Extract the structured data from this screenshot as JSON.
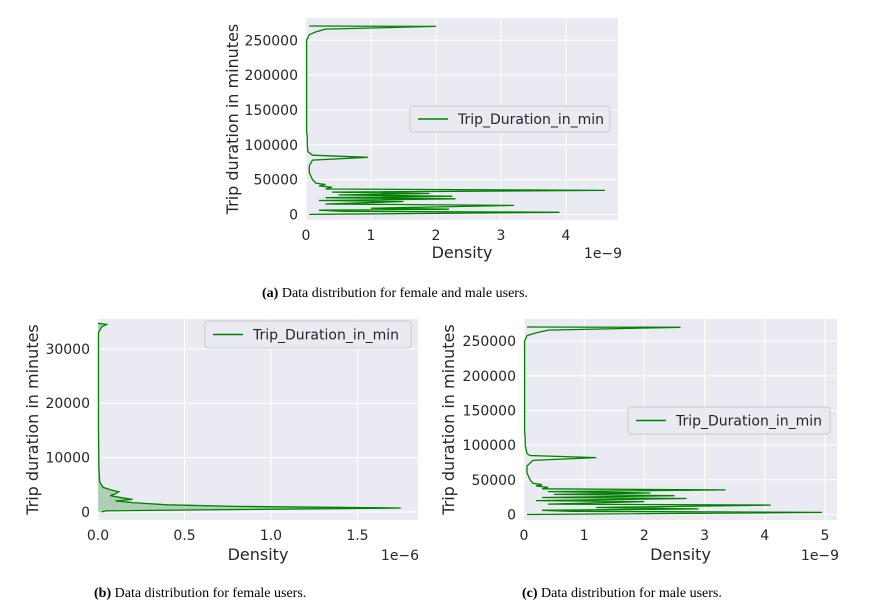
{
  "chart_data": [
    {
      "id": "a",
      "type": "line",
      "orientation": "horizontal-density",
      "caption_label": "(a)",
      "caption_text": "Data distribution for female and male users.",
      "xlabel": "Density",
      "ylabel": "Trip duration in minutes",
      "x_offset_text": "1e−9",
      "xlim": [
        0,
        4.8
      ],
      "ylim": [
        -8000,
        282000
      ],
      "xticks": [
        0,
        1,
        2,
        3,
        4
      ],
      "xtick_labels": [
        "0",
        "1",
        "2",
        "3",
        "4"
      ],
      "yticks": [
        0,
        50000,
        100000,
        150000,
        200000,
        250000
      ],
      "ytick_labels": [
        "0",
        "50000",
        "100000",
        "150000",
        "200000",
        "250000"
      ],
      "legend": [
        "Trip_Duration_in_min"
      ],
      "legend_position": "center-right",
      "color": "#008000",
      "fill": false,
      "series": [
        {
          "name": "Trip_Duration_in_min",
          "points": [
            [
              0.05,
              0
            ],
            [
              3.9,
              3000
            ],
            [
              0.6,
              4500
            ],
            [
              0.2,
              6000
            ],
            [
              2.2,
              7500
            ],
            [
              1.0,
              9000
            ],
            [
              3.2,
              13000
            ],
            [
              0.3,
              15000
            ],
            [
              1.5,
              18500
            ],
            [
              0.2,
              20000
            ],
            [
              2.3,
              22500
            ],
            [
              0.3,
              24000
            ],
            [
              2.25,
              26000
            ],
            [
              0.5,
              28000
            ],
            [
              1.9,
              30000
            ],
            [
              0.4,
              32000
            ],
            [
              4.6,
              34500
            ],
            [
              0.3,
              36500
            ],
            [
              0.4,
              39000
            ],
            [
              0.2,
              41000
            ],
            [
              0.3,
              43000
            ],
            [
              0.15,
              45000
            ],
            [
              0.1,
              50000
            ],
            [
              0.05,
              60000
            ],
            [
              0.05,
              70000
            ],
            [
              0.1,
              78000
            ],
            [
              0.95,
              82000
            ],
            [
              0.1,
              85000
            ],
            [
              0.03,
              90000
            ],
            [
              0.02,
              100000
            ],
            [
              0.02,
              110000
            ],
            [
              0.01,
              120000
            ],
            [
              0.01,
              150000
            ],
            [
              0.01,
              200000
            ],
            [
              0.01,
              250000
            ],
            [
              0.05,
              258000
            ],
            [
              0.15,
              262000
            ],
            [
              0.3,
              266000
            ],
            [
              2.0,
              270000
            ],
            [
              0.05,
              270500
            ]
          ]
        }
      ]
    },
    {
      "id": "b",
      "type": "line",
      "orientation": "horizontal-density",
      "caption_label": "(b)",
      "caption_text": "Data distribution for female users.",
      "xlabel": "Density",
      "ylabel": "Trip duration in minutes",
      "x_offset_text": "1e−6",
      "xlim": [
        0,
        1.85
      ],
      "ylim": [
        -1500,
        35500
      ],
      "xticks": [
        0,
        0.5,
        1.0,
        1.5
      ],
      "xtick_labels": [
        "0.0",
        "0.5",
        "1.0",
        "1.5"
      ],
      "yticks": [
        0,
        10000,
        20000,
        30000
      ],
      "ytick_labels": [
        "0",
        "10000",
        "20000",
        "30000"
      ],
      "legend": [
        "Trip_Duration_in_min"
      ],
      "legend_position": "top-right",
      "color": "#008000",
      "fill": true,
      "series": [
        {
          "name": "Trip_Duration_in_min",
          "points": [
            [
              0.02,
              0
            ],
            [
              0.05,
              200
            ],
            [
              1.75,
              700
            ],
            [
              0.8,
              1000
            ],
            [
              0.4,
              1300
            ],
            [
              0.2,
              1700
            ],
            [
              0.1,
              2000
            ],
            [
              0.2,
              2300
            ],
            [
              0.12,
              2700
            ],
            [
              0.07,
              3000
            ],
            [
              0.1,
              3300
            ],
            [
              0.12,
              3700
            ],
            [
              0.08,
              4000
            ],
            [
              0.03,
              4500
            ],
            [
              0.01,
              5500
            ],
            [
              0.005,
              8000
            ],
            [
              0.003,
              15000
            ],
            [
              0.003,
              25000
            ],
            [
              0.003,
              33000
            ],
            [
              0.02,
              34000
            ],
            [
              0.05,
              34500
            ],
            [
              0.0,
              34700
            ]
          ]
        }
      ]
    },
    {
      "id": "c",
      "type": "line",
      "orientation": "horizontal-density",
      "caption_label": "(c)",
      "caption_text": "Data distribution for male users.",
      "xlabel": "Density",
      "ylabel": "Trip duration in minutes",
      "x_offset_text": "1e−9",
      "xlim": [
        0,
        5.2
      ],
      "ylim": [
        -8000,
        282000
      ],
      "xticks": [
        0,
        1,
        2,
        3,
        4,
        5
      ],
      "xtick_labels": [
        "0",
        "1",
        "2",
        "3",
        "4",
        "5"
      ],
      "yticks": [
        0,
        50000,
        100000,
        150000,
        200000,
        250000
      ],
      "ytick_labels": [
        "0",
        "50000",
        "100000",
        "150000",
        "200000",
        "250000"
      ],
      "legend": [
        "Trip_Duration_in_min"
      ],
      "legend_position": "center-right",
      "color": "#008000",
      "fill": false,
      "series": [
        {
          "name": "Trip_Duration_in_min",
          "points": [
            [
              0.05,
              0
            ],
            [
              4.95,
              3000
            ],
            [
              0.8,
              4500
            ],
            [
              0.3,
              6000
            ],
            [
              2.9,
              8000
            ],
            [
              1.2,
              10000
            ],
            [
              4.1,
              13500
            ],
            [
              0.4,
              15000
            ],
            [
              2.0,
              18500
            ],
            [
              0.2,
              20000
            ],
            [
              2.7,
              23000
            ],
            [
              0.3,
              24500
            ],
            [
              2.5,
              27000
            ],
            [
              0.5,
              29000
            ],
            [
              2.1,
              31000
            ],
            [
              0.4,
              33000
            ],
            [
              3.35,
              35500
            ],
            [
              0.3,
              37000
            ],
            [
              0.4,
              39000
            ],
            [
              0.2,
              41000
            ],
            [
              0.3,
              43000
            ],
            [
              0.15,
              45000
            ],
            [
              0.1,
              50000
            ],
            [
              0.05,
              60000
            ],
            [
              0.05,
              70000
            ],
            [
              0.15,
              78000
            ],
            [
              1.2,
              82000
            ],
            [
              0.1,
              85000
            ],
            [
              0.05,
              88000
            ],
            [
              0.02,
              100000
            ],
            [
              0.02,
              110000
            ],
            [
              0.01,
              120000
            ],
            [
              0.01,
              150000
            ],
            [
              0.01,
              200000
            ],
            [
              0.01,
              250000
            ],
            [
              0.05,
              258000
            ],
            [
              0.2,
              262000
            ],
            [
              0.4,
              266000
            ],
            [
              2.6,
              270000
            ],
            [
              0.05,
              270500
            ]
          ]
        }
      ]
    }
  ]
}
